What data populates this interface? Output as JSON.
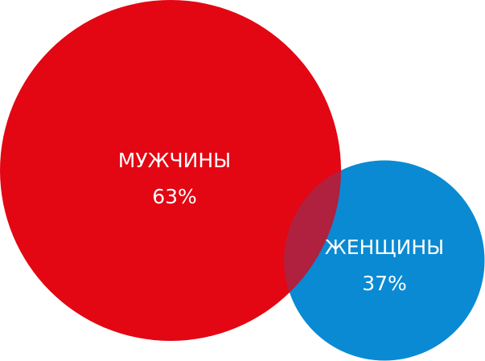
{
  "chart_data": {
    "type": "proportional-circles",
    "series": [
      {
        "name": "МУЖЧИНЫ",
        "color": "#e30613",
        "values": [
          63
        ],
        "value_labels": [
          "63%"
        ]
      },
      {
        "name": "ЖЕНЩИНЫ",
        "color": "#0a8ad2",
        "values": [
          37
        ],
        "value_labels": [
          "37%"
        ]
      }
    ],
    "overlap_color": "#b0203f"
  }
}
